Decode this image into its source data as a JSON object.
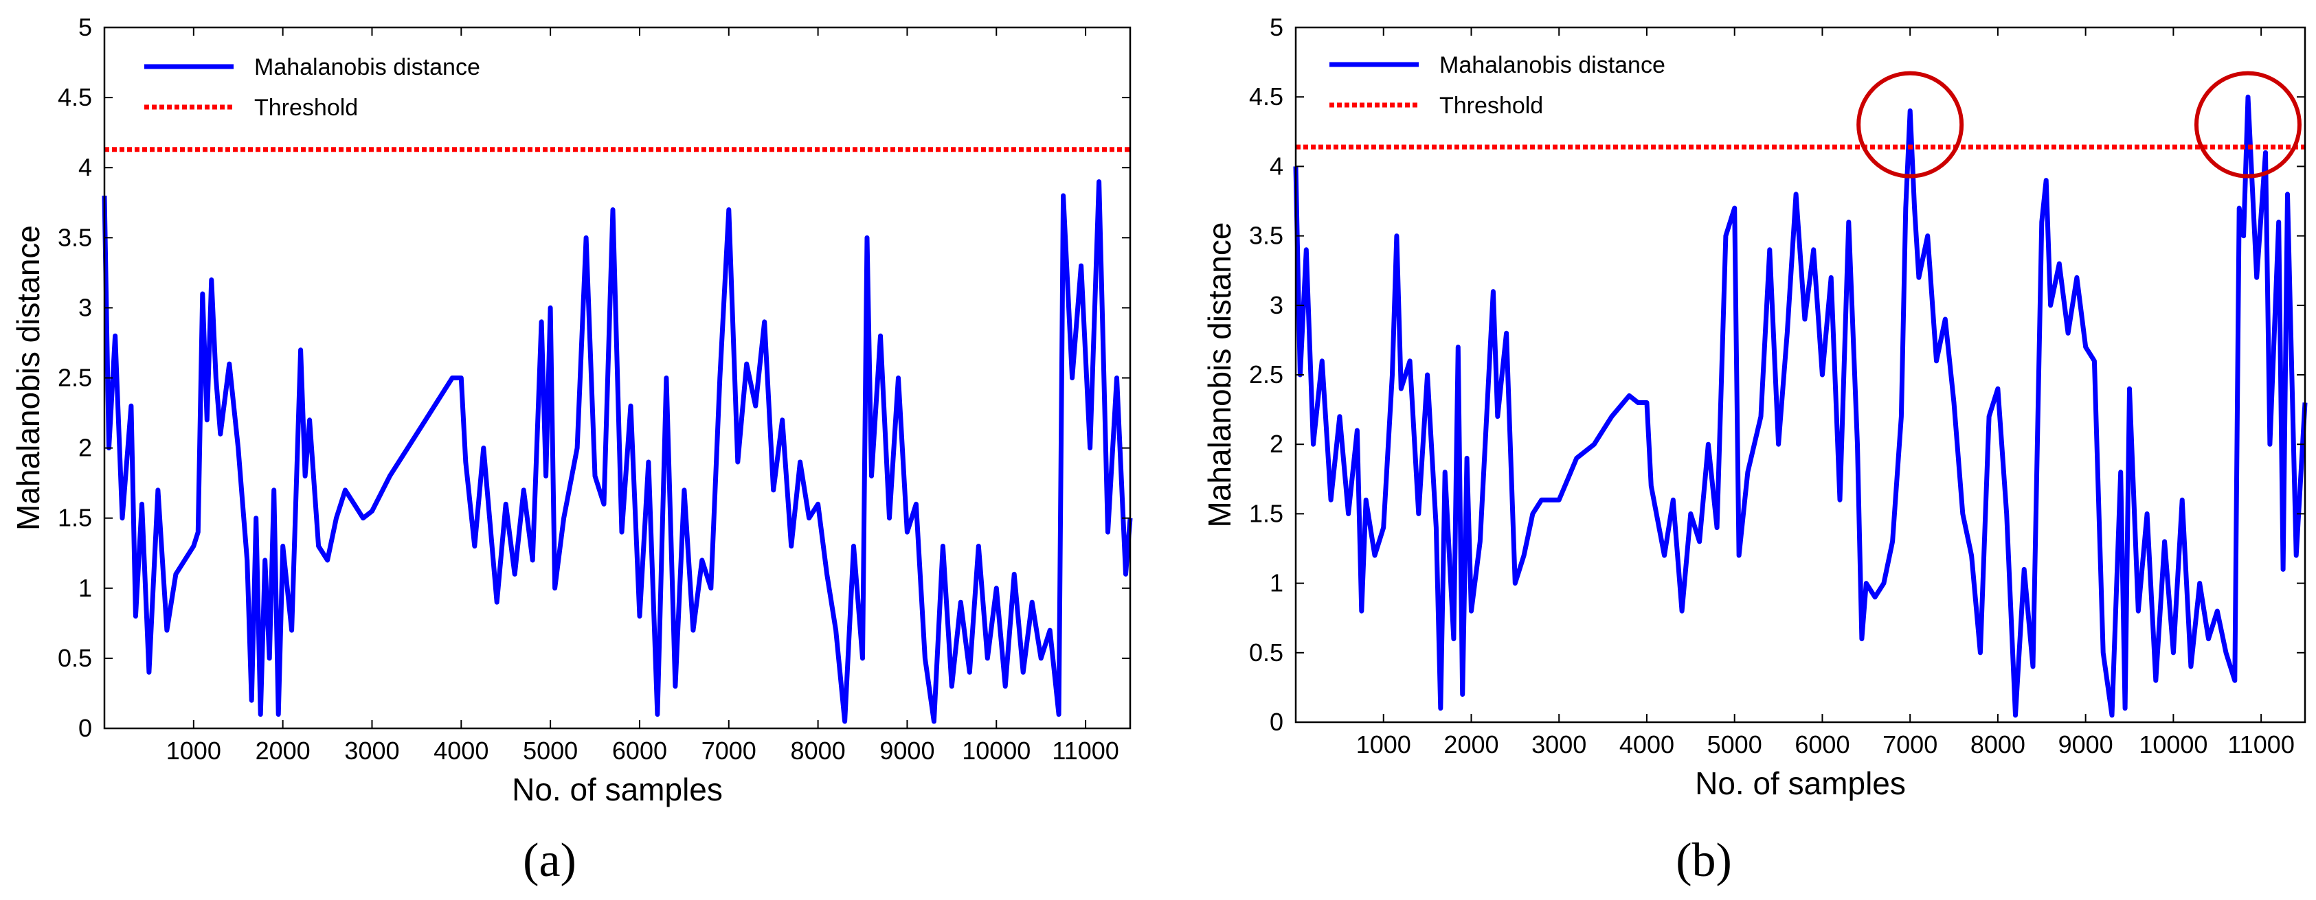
{
  "chart_data": [
    {
      "id": "a",
      "type": "line",
      "panel_label": "(a)",
      "xlabel": "No. of samples",
      "ylabel": "Mahalanobis distance",
      "xlim": [
        0,
        11500
      ],
      "ylim": [
        0,
        5
      ],
      "xticks": [
        1000,
        2000,
        3000,
        4000,
        5000,
        6000,
        7000,
        8000,
        9000,
        10000,
        11000
      ],
      "yticks": [
        0,
        0.5,
        1,
        1.5,
        2,
        2.5,
        3,
        3.5,
        4,
        4.5,
        5
      ],
      "legend_position": "top-left",
      "series": [
        {
          "name": "Mahalanobis distance",
          "color": "#0000ff",
          "style": "solid",
          "points": [
            [
              0,
              3.8
            ],
            [
              50,
              2.0
            ],
            [
              120,
              2.8
            ],
            [
              200,
              1.5
            ],
            [
              300,
              2.3
            ],
            [
              350,
              0.8
            ],
            [
              420,
              1.6
            ],
            [
              500,
              0.4
            ],
            [
              600,
              1.7
            ],
            [
              700,
              0.7
            ],
            [
              800,
              1.1
            ],
            [
              900,
              1.2
            ],
            [
              1000,
              1.3
            ],
            [
              1050,
              1.4
            ],
            [
              1100,
              3.1
            ],
            [
              1150,
              2.2
            ],
            [
              1200,
              3.2
            ],
            [
              1250,
              2.5
            ],
            [
              1300,
              2.1
            ],
            [
              1400,
              2.6
            ],
            [
              1500,
              2.0
            ],
            [
              1600,
              1.2
            ],
            [
              1650,
              0.2
            ],
            [
              1700,
              1.5
            ],
            [
              1750,
              0.1
            ],
            [
              1800,
              1.2
            ],
            [
              1850,
              0.5
            ],
            [
              1900,
              1.7
            ],
            [
              1950,
              0.1
            ],
            [
              2000,
              1.3
            ],
            [
              2100,
              0.7
            ],
            [
              2200,
              2.7
            ],
            [
              2250,
              1.8
            ],
            [
              2300,
              2.2
            ],
            [
              2400,
              1.3
            ],
            [
              2500,
              1.2
            ],
            [
              2600,
              1.5
            ],
            [
              2700,
              1.7
            ],
            [
              2800,
              1.6
            ],
            [
              2900,
              1.5
            ],
            [
              3000,
              1.55
            ],
            [
              3200,
              1.8
            ],
            [
              3400,
              2.0
            ],
            [
              3600,
              2.2
            ],
            [
              3800,
              2.4
            ],
            [
              3900,
              2.5
            ],
            [
              4000,
              2.5
            ],
            [
              4050,
              1.9
            ],
            [
              4150,
              1.3
            ],
            [
              4250,
              2.0
            ],
            [
              4400,
              0.9
            ],
            [
              4500,
              1.6
            ],
            [
              4600,
              1.1
            ],
            [
              4700,
              1.7
            ],
            [
              4800,
              1.2
            ],
            [
              4900,
              2.9
            ],
            [
              4950,
              1.8
            ],
            [
              5000,
              3.0
            ],
            [
              5050,
              1.0
            ],
            [
              5150,
              1.5
            ],
            [
              5300,
              2.0
            ],
            [
              5400,
              3.5
            ],
            [
              5500,
              1.8
            ],
            [
              5600,
              1.6
            ],
            [
              5700,
              3.7
            ],
            [
              5800,
              1.4
            ],
            [
              5900,
              2.3
            ],
            [
              6000,
              0.8
            ],
            [
              6100,
              1.9
            ],
            [
              6200,
              0.1
            ],
            [
              6300,
              2.5
            ],
            [
              6400,
              0.3
            ],
            [
              6500,
              1.7
            ],
            [
              6600,
              0.7
            ],
            [
              6700,
              1.2
            ],
            [
              6800,
              1.0
            ],
            [
              6900,
              2.5
            ],
            [
              7000,
              3.7
            ],
            [
              7100,
              1.9
            ],
            [
              7200,
              2.6
            ],
            [
              7300,
              2.3
            ],
            [
              7400,
              2.9
            ],
            [
              7500,
              1.7
            ],
            [
              7600,
              2.2
            ],
            [
              7700,
              1.3
            ],
            [
              7800,
              1.9
            ],
            [
              7900,
              1.5
            ],
            [
              8000,
              1.6
            ],
            [
              8100,
              1.1
            ],
            [
              8200,
              0.7
            ],
            [
              8300,
              0.05
            ],
            [
              8400,
              1.3
            ],
            [
              8500,
              0.5
            ],
            [
              8550,
              3.5
            ],
            [
              8600,
              1.8
            ],
            [
              8700,
              2.8
            ],
            [
              8800,
              1.5
            ],
            [
              8900,
              2.5
            ],
            [
              9000,
              1.4
            ],
            [
              9100,
              1.6
            ],
            [
              9200,
              0.5
            ],
            [
              9300,
              0.05
            ],
            [
              9400,
              1.3
            ],
            [
              9500,
              0.3
            ],
            [
              9600,
              0.9
            ],
            [
              9700,
              0.4
            ],
            [
              9800,
              1.3
            ],
            [
              9900,
              0.5
            ],
            [
              10000,
              1.0
            ],
            [
              10100,
              0.3
            ],
            [
              10200,
              1.1
            ],
            [
              10300,
              0.4
            ],
            [
              10400,
              0.9
            ],
            [
              10500,
              0.5
            ],
            [
              10600,
              0.7
            ],
            [
              10700,
              0.1
            ],
            [
              10750,
              3.8
            ],
            [
              10850,
              2.5
            ],
            [
              10950,
              3.3
            ],
            [
              11050,
              2.0
            ],
            [
              11150,
              3.9
            ],
            [
              11250,
              1.4
            ],
            [
              11350,
              2.5
            ],
            [
              11450,
              1.1
            ],
            [
              11500,
              1.5
            ]
          ]
        },
        {
          "name": "Threshold",
          "color": "#ff0000",
          "style": "dotted",
          "points": [
            [
              0,
              4.13
            ],
            [
              11500,
              4.13
            ]
          ]
        }
      ]
    },
    {
      "id": "b",
      "type": "line",
      "panel_label": "(b)",
      "xlabel": "No. of samples",
      "ylabel": "Mahalanobis distance",
      "xlim": [
        0,
        11500
      ],
      "ylim": [
        0,
        5
      ],
      "xticks": [
        1000,
        2000,
        3000,
        4000,
        5000,
        6000,
        7000,
        8000,
        9000,
        10000,
        11000
      ],
      "yticks": [
        0,
        0.5,
        1,
        1.5,
        2,
        2.5,
        3,
        3.5,
        4,
        4.5,
        5
      ],
      "legend_position": "top-left",
      "annotations": [
        {
          "type": "circle",
          "x": 7000,
          "y": 4.3,
          "note": "exceeds threshold"
        },
        {
          "type": "circle",
          "x": 10850,
          "y": 4.3,
          "note": "exceeds threshold"
        }
      ],
      "series": [
        {
          "name": "Mahalanobis distance",
          "color": "#0000ff",
          "style": "solid",
          "points": [
            [
              0,
              4.0
            ],
            [
              50,
              2.5
            ],
            [
              120,
              3.4
            ],
            [
              200,
              2.0
            ],
            [
              300,
              2.6
            ],
            [
              400,
              1.6
            ],
            [
              500,
              2.2
            ],
            [
              600,
              1.5
            ],
            [
              700,
              2.1
            ],
            [
              750,
              0.8
            ],
            [
              800,
              1.6
            ],
            [
              900,
              1.2
            ],
            [
              1000,
              1.4
            ],
            [
              1100,
              2.5
            ],
            [
              1150,
              3.5
            ],
            [
              1200,
              2.4
            ],
            [
              1300,
              2.6
            ],
            [
              1400,
              1.5
            ],
            [
              1500,
              2.5
            ],
            [
              1600,
              1.4
            ],
            [
              1650,
              0.1
            ],
            [
              1700,
              1.8
            ],
            [
              1800,
              0.6
            ],
            [
              1850,
              2.7
            ],
            [
              1900,
              0.2
            ],
            [
              1950,
              1.9
            ],
            [
              2000,
              0.8
            ],
            [
              2100,
              1.3
            ],
            [
              2200,
              2.5
            ],
            [
              2250,
              3.1
            ],
            [
              2300,
              2.2
            ],
            [
              2400,
              2.8
            ],
            [
              2500,
              1.0
            ],
            [
              2600,
              1.2
            ],
            [
              2700,
              1.5
            ],
            [
              2800,
              1.6
            ],
            [
              3000,
              1.6
            ],
            [
              3200,
              1.9
            ],
            [
              3400,
              2.0
            ],
            [
              3600,
              2.2
            ],
            [
              3800,
              2.35
            ],
            [
              3900,
              2.3
            ],
            [
              4000,
              2.3
            ],
            [
              4050,
              1.7
            ],
            [
              4200,
              1.2
            ],
            [
              4300,
              1.6
            ],
            [
              4400,
              0.8
            ],
            [
              4500,
              1.5
            ],
            [
              4600,
              1.3
            ],
            [
              4700,
              2.0
            ],
            [
              4800,
              1.4
            ],
            [
              4900,
              3.5
            ],
            [
              5000,
              3.7
            ],
            [
              5050,
              1.2
            ],
            [
              5150,
              1.8
            ],
            [
              5300,
              2.2
            ],
            [
              5400,
              3.4
            ],
            [
              5500,
              2.0
            ],
            [
              5600,
              2.8
            ],
            [
              5700,
              3.8
            ],
            [
              5800,
              2.9
            ],
            [
              5900,
              3.4
            ],
            [
              6000,
              2.5
            ],
            [
              6100,
              3.2
            ],
            [
              6200,
              1.6
            ],
            [
              6300,
              3.6
            ],
            [
              6400,
              2.0
            ],
            [
              6450,
              0.6
            ],
            [
              6500,
              1.0
            ],
            [
              6600,
              0.9
            ],
            [
              6700,
              1.0
            ],
            [
              6800,
              1.3
            ],
            [
              6900,
              2.2
            ],
            [
              6950,
              3.7
            ],
            [
              7000,
              4.4
            ],
            [
              7050,
              3.7
            ],
            [
              7100,
              3.2
            ],
            [
              7200,
              3.5
            ],
            [
              7300,
              2.6
            ],
            [
              7400,
              2.9
            ],
            [
              7500,
              2.3
            ],
            [
              7600,
              1.5
            ],
            [
              7700,
              1.2
            ],
            [
              7800,
              0.5
            ],
            [
              7900,
              2.2
            ],
            [
              8000,
              2.4
            ],
            [
              8100,
              1.5
            ],
            [
              8200,
              0.05
            ],
            [
              8300,
              1.1
            ],
            [
              8400,
              0.4
            ],
            [
              8500,
              3.6
            ],
            [
              8550,
              3.9
            ],
            [
              8600,
              3.0
            ],
            [
              8700,
              3.3
            ],
            [
              8800,
              2.8
            ],
            [
              8900,
              3.2
            ],
            [
              9000,
              2.7
            ],
            [
              9100,
              2.6
            ],
            [
              9200,
              0.5
            ],
            [
              9300,
              0.05
            ],
            [
              9400,
              1.8
            ],
            [
              9450,
              0.1
            ],
            [
              9500,
              2.4
            ],
            [
              9600,
              0.8
            ],
            [
              9700,
              1.5
            ],
            [
              9800,
              0.3
            ],
            [
              9900,
              1.3
            ],
            [
              10000,
              0.5
            ],
            [
              10100,
              1.6
            ],
            [
              10200,
              0.4
            ],
            [
              10300,
              1.0
            ],
            [
              10400,
              0.6
            ],
            [
              10500,
              0.8
            ],
            [
              10600,
              0.5
            ],
            [
              10700,
              0.3
            ],
            [
              10750,
              3.7
            ],
            [
              10800,
              3.5
            ],
            [
              10850,
              4.5
            ],
            [
              10950,
              3.2
            ],
            [
              11050,
              4.1
            ],
            [
              11100,
              2.0
            ],
            [
              11200,
              3.6
            ],
            [
              11250,
              1.1
            ],
            [
              11300,
              3.8
            ],
            [
              11400,
              1.2
            ],
            [
              11500,
              2.3
            ]
          ]
        },
        {
          "name": "Threshold",
          "color": "#ff0000",
          "style": "dotted",
          "points": [
            [
              0,
              4.14
            ],
            [
              11500,
              4.14
            ]
          ]
        }
      ]
    }
  ]
}
